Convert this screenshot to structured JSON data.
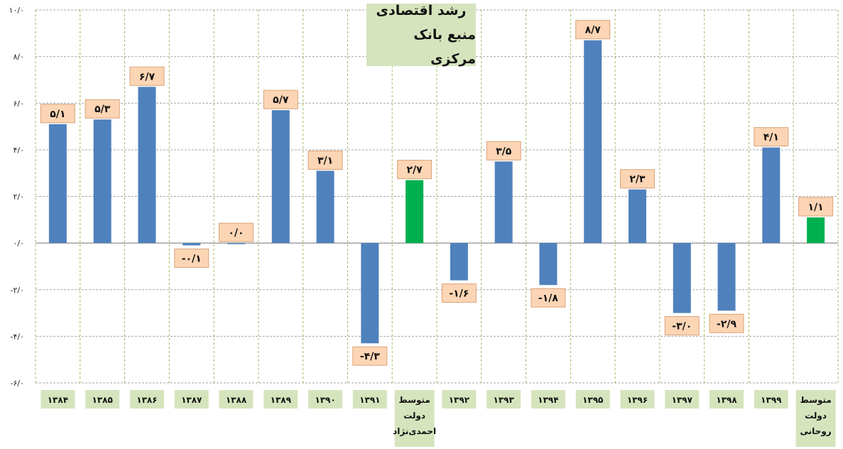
{
  "chart_data": {
    "type": "bar",
    "title": "رشد اقتصادی",
    "subtitle": "منبع بانک مرکزی",
    "ylim": [
      -6,
      10
    ],
    "y_ticks": [
      "۱۰/۰",
      "۸/۰",
      "۶/۰",
      "۴/۰",
      "۲/۰",
      "۰/۰",
      "-۲/۰",
      "-۴/۰",
      "-۶/۰"
    ],
    "y_tick_values": [
      10,
      8,
      6,
      4,
      2,
      0,
      -2,
      -4,
      -6
    ],
    "grid": true,
    "categories": [
      [
        "۱۳۸۴"
      ],
      [
        "۱۳۸۵"
      ],
      [
        "۱۳۸۶"
      ],
      [
        "۱۳۸۷"
      ],
      [
        "۱۳۸۸"
      ],
      [
        "۱۳۸۹"
      ],
      [
        "۱۳۹۰"
      ],
      [
        "۱۳۹۱"
      ],
      [
        "متوسط",
        "دولت",
        "احمدی‌نژاد"
      ],
      [
        "۱۳۹۲"
      ],
      [
        "۱۳۹۳"
      ],
      [
        "۱۳۹۴"
      ],
      [
        "۱۳۹۵"
      ],
      [
        "۱۳۹۶"
      ],
      [
        "۱۳۹۷"
      ],
      [
        "۱۳۹۸"
      ],
      [
        "۱۳۹۹"
      ],
      [
        "متوسط",
        "دولت",
        "روحانی"
      ]
    ],
    "values": [
      5.1,
      5.3,
      6.7,
      -0.1,
      0.0,
      5.7,
      3.1,
      -4.3,
      2.7,
      -1.6,
      3.5,
      -1.8,
      8.7,
      2.3,
      -3.0,
      -2.9,
      4.1,
      1.1
    ],
    "value_labels": [
      "۵/۱",
      "۵/۳",
      "۶/۷",
      "-۰/۱",
      "۰/۰",
      "۵/۷",
      "۳/۱",
      "-۴/۳",
      "۲/۷",
      "-۱/۶",
      "۳/۵",
      "-۱/۸",
      "۸/۷",
      "۲/۳",
      "-۳/۰",
      "-۲/۹",
      "۴/۱",
      "۱/۱"
    ],
    "bar_colors": [
      "#4f81bd",
      "#4f81bd",
      "#4f81bd",
      "#4f81bd",
      "#4f81bd",
      "#4f81bd",
      "#4f81bd",
      "#4f81bd",
      "#00b050",
      "#4f81bd",
      "#4f81bd",
      "#4f81bd",
      "#4f81bd",
      "#4f81bd",
      "#4f81bd",
      "#4f81bd",
      "#4f81bd",
      "#00b050"
    ]
  }
}
